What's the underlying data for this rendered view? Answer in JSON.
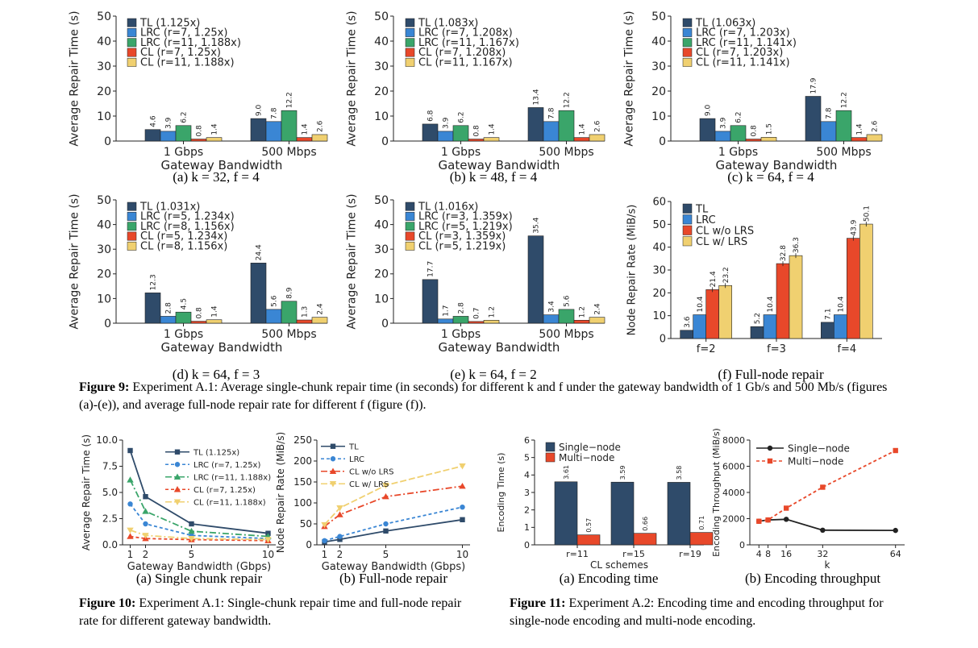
{
  "colors": {
    "tl": "#2f4b6a",
    "lrc": "#3a86d4",
    "lrc2": "#3aa56a",
    "cl": "#e8482a",
    "cl2": "#f0d070",
    "black": "#222222"
  },
  "chart_data": [
    {
      "id": "9a",
      "type": "bar",
      "categories": [
        "1 Gbps",
        "500 Mbps"
      ],
      "xlabel": "Gateway Bandwidth",
      "ylabel": "Average Repair Time (s)",
      "ylim": [
        0,
        50
      ],
      "yticks": [
        0,
        10,
        20,
        30,
        40,
        50
      ],
      "series": [
        {
          "name": "TL (1.125x)",
          "color": "tl",
          "values": [
            4.6,
            9.0
          ]
        },
        {
          "name": "LRC (r=7, 1.25x)",
          "color": "lrc",
          "values": [
            3.9,
            7.8
          ]
        },
        {
          "name": "LRC (r=11, 1.188x)",
          "color": "lrc2",
          "values": [
            6.2,
            12.2
          ]
        },
        {
          "name": "CL (r=7, 1.25x)",
          "color": "cl",
          "values": [
            0.8,
            1.4
          ]
        },
        {
          "name": "CL (r=11, 1.188x)",
          "color": "cl2",
          "values": [
            1.4,
            2.6
          ]
        }
      ],
      "labels": [
        [
          "4.6",
          "3.9",
          "6.2",
          "0.8",
          "1.4"
        ],
        [
          "9.0",
          "7.8",
          "12.2",
          "1.4",
          "2.6"
        ]
      ],
      "subcaption": "(a) k = 32,  f = 4"
    },
    {
      "id": "9b",
      "type": "bar",
      "categories": [
        "1 Gbps",
        "500 Mbps"
      ],
      "xlabel": "Gateway Bandwidth",
      "ylabel": "Average Repair Time (s)",
      "ylim": [
        0,
        50
      ],
      "yticks": [
        0,
        10,
        20,
        30,
        40,
        50
      ],
      "series": [
        {
          "name": "TL (1.083x)",
          "color": "tl",
          "values": [
            6.8,
            13.4
          ]
        },
        {
          "name": "LRC (r=7, 1.208x)",
          "color": "lrc",
          "values": [
            3.9,
            7.8
          ]
        },
        {
          "name": "LRC (r=11, 1.167x)",
          "color": "lrc2",
          "values": [
            6.2,
            12.2
          ]
        },
        {
          "name": "CL (r=7, 1.208x)",
          "color": "cl",
          "values": [
            0.8,
            1.4
          ]
        },
        {
          "name": "CL (r=11, 1.167x)",
          "color": "cl2",
          "values": [
            1.4,
            2.6
          ]
        }
      ],
      "labels": [
        [
          "6.8",
          "3.9",
          "6.2",
          "0.8",
          "1.4"
        ],
        [
          "13.4",
          "7.8",
          "12.2",
          "1.4",
          "2.6"
        ]
      ],
      "subcaption": "(b) k = 48,  f = 4"
    },
    {
      "id": "9c",
      "type": "bar",
      "categories": [
        "1 Gbps",
        "500 Mbps"
      ],
      "xlabel": "Gateway Bandwidth",
      "ylabel": "Average Repair Time (s)",
      "ylim": [
        0,
        50
      ],
      "yticks": [
        0,
        10,
        20,
        30,
        40,
        50
      ],
      "series": [
        {
          "name": "TL (1.063x)",
          "color": "tl",
          "values": [
            9.0,
            17.9
          ]
        },
        {
          "name": "LRC (r=7, 1.203x)",
          "color": "lrc",
          "values": [
            3.9,
            7.8
          ]
        },
        {
          "name": "LRC (r=11, 1.141x)",
          "color": "lrc2",
          "values": [
            6.2,
            12.2
          ]
        },
        {
          "name": "CL (r=7, 1.203x)",
          "color": "cl",
          "values": [
            0.8,
            1.4
          ]
        },
        {
          "name": "CL (r=11, 1.141x)",
          "color": "cl2",
          "values": [
            1.5,
            2.6
          ]
        }
      ],
      "labels": [
        [
          "9.0",
          "3.9",
          "6.2",
          "0.8",
          "1.5"
        ],
        [
          "17.9",
          "7.8",
          "12.2",
          "1.4",
          "2.6"
        ]
      ],
      "subcaption": "(c) k = 64,  f = 4"
    },
    {
      "id": "9d",
      "type": "bar",
      "categories": [
        "1 Gbps",
        "500 Mbps"
      ],
      "xlabel": "Gateway Bandwidth",
      "ylabel": "Average Repair Time (s)",
      "ylim": [
        0,
        50
      ],
      "yticks": [
        0,
        10,
        20,
        30,
        40,
        50
      ],
      "series": [
        {
          "name": "TL (1.031x)",
          "color": "tl",
          "values": [
            12.3,
            24.4
          ]
        },
        {
          "name": "LRC (r=5, 1.234x)",
          "color": "lrc",
          "values": [
            2.8,
            5.6
          ]
        },
        {
          "name": "LRC (r=8, 1.156x)",
          "color": "lrc2",
          "values": [
            4.5,
            8.9
          ]
        },
        {
          "name": "CL (r=5, 1.234x)",
          "color": "cl",
          "values": [
            0.8,
            1.3
          ]
        },
        {
          "name": "CL (r=8, 1.156x)",
          "color": "cl2",
          "values": [
            1.4,
            2.4
          ]
        }
      ],
      "labels": [
        [
          "12.3",
          "2.8",
          "4.5",
          "0.8",
          "1.4"
        ],
        [
          "24.4",
          "5.6",
          "8.9",
          "1.3",
          "2.4"
        ]
      ],
      "subcaption": "(d) k = 64,  f = 3"
    },
    {
      "id": "9e",
      "type": "bar",
      "categories": [
        "1 Gbps",
        "500 Mbps"
      ],
      "xlabel": "Gateway Bandwidth",
      "ylabel": "Average Repair Time (s)",
      "ylim": [
        0,
        50
      ],
      "yticks": [
        0,
        10,
        20,
        30,
        40,
        50
      ],
      "series": [
        {
          "name": "TL (1.016x)",
          "color": "tl",
          "values": [
            17.7,
            35.4
          ]
        },
        {
          "name": "LRC (r=3, 1.359x)",
          "color": "lrc",
          "values": [
            1.7,
            3.4
          ]
        },
        {
          "name": "LRC (r=5, 1.219x)",
          "color": "lrc2",
          "values": [
            2.8,
            5.6
          ]
        },
        {
          "name": "CL (r=3, 1.359x)",
          "color": "cl",
          "values": [
            0.7,
            1.2
          ]
        },
        {
          "name": "CL (r=5, 1.219x)",
          "color": "cl2",
          "values": [
            1.2,
            2.4
          ]
        }
      ],
      "labels": [
        [
          "17.7",
          "1.7",
          "2.8",
          "0.7",
          "1.2"
        ],
        [
          "35.4",
          "3.4",
          "5.6",
          "1.2",
          "2.4"
        ]
      ],
      "subcaption": "(e) k = 64,  f = 2"
    },
    {
      "id": "9f",
      "type": "bar",
      "categories": [
        "f=2",
        "f=3",
        "f=4"
      ],
      "xlabel": "",
      "ylabel": "Node Repair Rate (MiB/s)",
      "ylim": [
        0,
        60
      ],
      "yticks": [
        0,
        10,
        20,
        30,
        40,
        50,
        60
      ],
      "series": [
        {
          "name": "TL",
          "color": "tl",
          "values": [
            3.6,
            5.2,
            7.1
          ]
        },
        {
          "name": "LRC",
          "color": "lrc",
          "values": [
            10.4,
            10.4,
            10.4
          ]
        },
        {
          "name": "CL w/o LRS",
          "color": "cl",
          "values": [
            21.4,
            32.8,
            43.9
          ]
        },
        {
          "name": "CL w/ LRS",
          "color": "cl2",
          "values": [
            23.2,
            36.3,
            50.1
          ]
        }
      ],
      "labels": [
        [
          "3.6",
          "10.4",
          "21.4",
          "23.2"
        ],
        [
          "5.2",
          "10.4",
          "32.8",
          "36.3"
        ],
        [
          "7.1",
          "10.4",
          "43.9",
          "50.1"
        ]
      ],
      "subcaption": "(f) Full-node repair"
    },
    {
      "id": "10a",
      "type": "line",
      "x": [
        1,
        2,
        5,
        10
      ],
      "xticks": [
        "1",
        "2",
        "5",
        "10"
      ],
      "xlabel": "Gateway Bandwidth (Gbps)",
      "ylabel": "Average Repair Time (s)",
      "ylim": [
        0,
        10
      ],
      "xlim": [
        0.5,
        10.5
      ],
      "yticks": [
        "0.0",
        "2.5",
        "5.0",
        "7.5",
        "10.0"
      ],
      "series": [
        {
          "name": "TL (1.125x)",
          "color": "tl",
          "dash": "",
          "marker": "square",
          "values": [
            9.0,
            4.6,
            2.0,
            1.1
          ]
        },
        {
          "name": "LRC (r=7, 1.25x)",
          "color": "lrc",
          "dash": "4,3",
          "marker": "circle",
          "values": [
            3.9,
            2.0,
            0.9,
            0.6
          ]
        },
        {
          "name": "LRC (r=11, 1.188x)",
          "color": "lrc2",
          "dash": "8,3,2,3",
          "marker": "triangle",
          "values": [
            6.2,
            3.2,
            1.3,
            0.8
          ]
        },
        {
          "name": "CL (r=7, 1.25x)",
          "color": "cl",
          "dash": "4,3",
          "marker": "triangle",
          "values": [
            0.8,
            0.6,
            0.5,
            0.4
          ]
        },
        {
          "name": "CL (r=11, 1.188x)",
          "color": "cl2",
          "dash": "8,3,2,3",
          "marker": "triangledown",
          "values": [
            1.4,
            0.9,
            0.6,
            0.5
          ]
        }
      ],
      "subcaption": "(a) Single chunk repair"
    },
    {
      "id": "10b",
      "type": "line",
      "x": [
        1,
        2,
        5,
        10
      ],
      "xticks": [
        "1",
        "2",
        "5",
        "10"
      ],
      "xlabel": "Gateway Bandwidth (Gbps)",
      "ylabel": "Node Repair Rate (MiB/s)",
      "ylim": [
        0,
        250
      ],
      "xlim": [
        0.5,
        10.5
      ],
      "yticks": [
        "0",
        "50",
        "100",
        "150",
        "200",
        "250"
      ],
      "series": [
        {
          "name": "TL",
          "color": "tl",
          "dash": "",
          "marker": "square",
          "values": [
            7,
            13,
            33,
            60
          ]
        },
        {
          "name": "LRC",
          "color": "lrc",
          "dash": "4,3",
          "marker": "circle",
          "values": [
            10,
            20,
            50,
            90
          ]
        },
        {
          "name": "CL w/o LRS",
          "color": "cl",
          "dash": "8,3,2,3",
          "marker": "triangle",
          "values": [
            44,
            72,
            115,
            140
          ]
        },
        {
          "name": "CL w/ LRS",
          "color": "cl2",
          "dash": "8,3",
          "marker": "triangledown",
          "values": [
            48,
            88,
            142,
            188
          ]
        }
      ],
      "subcaption": "(b) Full-node repair"
    },
    {
      "id": "11a",
      "type": "bar",
      "categories": [
        "r=11",
        "r=15",
        "r=19"
      ],
      "xlabel": "CL schemes",
      "ylabel": "Encoding Time (s)",
      "ylim": [
        0,
        6
      ],
      "yticks": [
        0,
        1,
        2,
        3,
        4,
        5,
        6
      ],
      "series": [
        {
          "name": "Single−node",
          "color": "tl",
          "values": [
            3.61,
            3.59,
            3.58
          ]
        },
        {
          "name": "Multi−node",
          "color": "cl",
          "values": [
            0.57,
            0.66,
            0.71
          ]
        }
      ],
      "labels": [
        [
          "3.61",
          "0.57"
        ],
        [
          "3.59",
          "0.66"
        ],
        [
          "3.58",
          "0.71"
        ]
      ],
      "subcaption": "(a) Encoding time"
    },
    {
      "id": "11b",
      "type": "line",
      "x": [
        4,
        8,
        16,
        32,
        64
      ],
      "xticks": [
        "4",
        "8",
        "16",
        "32",
        "64"
      ],
      "xlabel": "k",
      "ylabel": "Encoding Throughput (MiB/s)",
      "ylim": [
        0,
        8000
      ],
      "xlim": [
        0,
        68
      ],
      "yticks": [
        "0",
        "2000",
        "4000",
        "6000",
        "8000"
      ],
      "series": [
        {
          "name": "Single−node",
          "color": "black",
          "dash": "",
          "marker": "circle",
          "values": [
            1800,
            1900,
            1950,
            1120,
            1100
          ]
        },
        {
          "name": "Multi−node",
          "color": "cl",
          "dash": "4,3",
          "marker": "square",
          "values": [
            1800,
            1900,
            2800,
            4400,
            7200
          ]
        }
      ],
      "subcaption": "(b) Encoding throughput"
    }
  ],
  "captions": {
    "fig9_label": "Figure 9:",
    "fig9_text": "Experiment A.1: Average single-chunk repair time (in seconds) for different k and f under the gateway bandwidth of 1 Gb/s and 500 Mb/s (figures (a)-(e)), and average full-node repair rate for different f (figure (f)).",
    "fig10_label": "Figure 10:",
    "fig10_text": "Experiment A.1: Single-chunk repair time and full-node repair rate for different gateway bandwidth.",
    "fig11_label": "Figure 11:",
    "fig11_text": "Experiment A.2: Encoding time and encoding throughput for single-node encoding and multi-node encoding."
  }
}
